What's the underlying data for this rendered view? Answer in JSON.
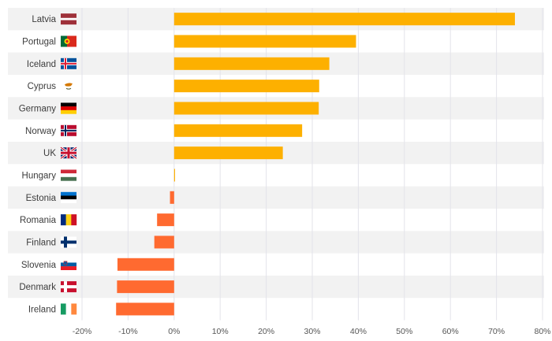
{
  "chart_data": {
    "type": "bar",
    "orientation": "horizontal",
    "title": "",
    "xlabel": "",
    "ylabel": "",
    "categories": [
      "Latvia",
      "Portugal",
      "Iceland",
      "Cyprus",
      "Germany",
      "Norway",
      "UK",
      "Hungary",
      "Estonia",
      "Romania",
      "Finland",
      "Slovenia",
      "Denmark",
      "Ireland"
    ],
    "values": [
      74.0,
      39.5,
      33.7,
      31.5,
      31.4,
      27.8,
      23.6,
      0.2,
      -0.9,
      -3.7,
      -4.3,
      -12.3,
      -12.4,
      -12.6
    ],
    "xlim": [
      -20,
      80
    ],
    "xticks": [
      -20,
      -10,
      0,
      10,
      20,
      30,
      40,
      50,
      60,
      70,
      80
    ],
    "xtick_labels": [
      "-20%",
      "-10%",
      "0%",
      "10%",
      "20%",
      "30%",
      "40%",
      "50%",
      "60%",
      "70%",
      "80%"
    ],
    "flags": [
      "latvia-flag-icon",
      "portugal-flag-icon",
      "iceland-flag-icon",
      "cyprus-flag-icon",
      "germany-flag-icon",
      "norway-flag-icon",
      "uk-flag-icon",
      "hungary-flag-icon",
      "estonia-flag-icon",
      "romania-flag-icon",
      "finland-flag-icon",
      "slovenia-flag-icon",
      "denmark-flag-icon",
      "ireland-flag-icon"
    ],
    "colors": {
      "positive": "#fdb000",
      "negative": "#ff6a30",
      "band": "#f2f2f2",
      "grid": "#e3e3ea",
      "text": "#3c3c3c"
    }
  }
}
